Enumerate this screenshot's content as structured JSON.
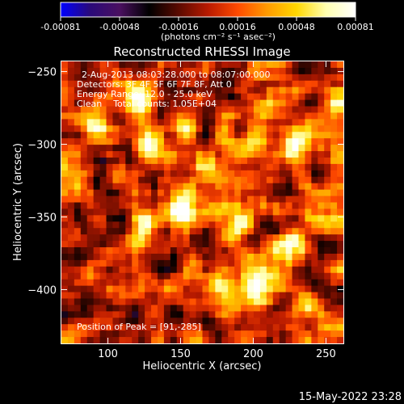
{
  "chart_data": {
    "type": "heatmap",
    "title": "Reconstructed RHESSI Image",
    "xlabel": "Heliocentric X (arcsec)",
    "ylabel": "Heliocentric Y (arcsec)",
    "xlim": [
      68,
      262
    ],
    "ylim": [
      -437,
      -243
    ],
    "x_ticks": [
      100,
      150,
      200,
      250
    ],
    "y_ticks": [
      -250,
      -300,
      -350,
      -400
    ],
    "colorbar": {
      "range": [
        -0.00081,
        0.00081
      ],
      "ticks": [
        "-0.00081",
        "-0.00048",
        "-0.00016",
        "0.00016",
        "0.00048",
        "0.00081"
      ],
      "unit_label": "(photons cm⁻² s⁻¹ asec⁻²)",
      "colors": [
        "#0000ff",
        "#2a0a7a",
        "#4a1060",
        "#000000",
        "#5a0a00",
        "#b81a00",
        "#ff4a00",
        "#ff9a00",
        "#ffd700",
        "#ffffb0",
        "#ffffff"
      ]
    },
    "annotations": [
      "2-Aug-2013 08:03:28.000 to 08:07:00.000",
      "Detectors: 3F 4F 5F 6F 7F 8F, Att 0",
      "Energy Range: 12.0 - 25.0 keV",
      "Clean    Total counts: 1.05E+04"
    ],
    "peak_label": "Position of Peak = [91,-285]",
    "peak_position": [
      91,
      -285
    ],
    "bright_regions": [
      {
        "x": 118,
        "y": -270,
        "value": 0.0007
      },
      {
        "x": 130,
        "y": -300,
        "value": 0.00075
      },
      {
        "x": 150,
        "y": -285,
        "value": 0.0006
      },
      {
        "x": 170,
        "y": -315,
        "value": 0.0005
      },
      {
        "x": 200,
        "y": -300,
        "value": 0.00045
      },
      {
        "x": 230,
        "y": -300,
        "value": 0.0007
      },
      {
        "x": 255,
        "y": -275,
        "value": 0.0005
      },
      {
        "x": 150,
        "y": -345,
        "value": 0.0008
      },
      {
        "x": 125,
        "y": -355,
        "value": 0.0006
      },
      {
        "x": 190,
        "y": -355,
        "value": 0.0006
      },
      {
        "x": 225,
        "y": -370,
        "value": 0.00065
      },
      {
        "x": 205,
        "y": -395,
        "value": 0.0007
      },
      {
        "x": 235,
        "y": -410,
        "value": 0.00055
      },
      {
        "x": 175,
        "y": -395,
        "value": 0.00045
      },
      {
        "x": 255,
        "y": -345,
        "value": 0.0005
      },
      {
        "x": 90,
        "y": -285,
        "value": 0.00081
      }
    ]
  },
  "timestamp": "15-May-2022 23:28"
}
